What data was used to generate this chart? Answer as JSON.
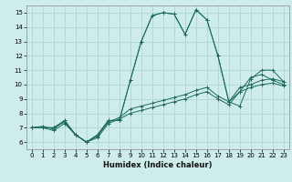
{
  "xlabel": "Humidex (Indice chaleur)",
  "bg_color": "#ceecea",
  "grid_color": "#a8d8d4",
  "line_color": "#1a6b5e",
  "xlim": [
    -0.5,
    23.5
  ],
  "ylim": [
    5.5,
    15.5
  ],
  "xticks": [
    0,
    1,
    2,
    3,
    4,
    5,
    6,
    7,
    8,
    9,
    10,
    11,
    12,
    13,
    14,
    15,
    16,
    17,
    18,
    19,
    20,
    21,
    22,
    23
  ],
  "yticks": [
    6,
    7,
    8,
    9,
    10,
    11,
    12,
    13,
    14,
    15
  ],
  "series": [
    [
      7.0,
      7.1,
      6.9,
      7.5,
      6.5,
      6.0,
      6.5,
      7.5,
      7.5,
      10.3,
      13.0,
      14.8,
      15.0,
      14.9,
      13.5,
      15.2,
      14.5,
      12.0,
      8.8,
      8.5,
      10.4,
      11.0,
      11.0,
      10.2
    ],
    [
      7.0,
      7.0,
      6.8,
      7.3,
      6.5,
      6.0,
      6.5,
      7.5,
      7.5,
      10.3,
      13.0,
      14.8,
      15.0,
      14.9,
      13.5,
      15.2,
      14.5,
      12.0,
      8.8,
      9.5,
      10.5,
      10.7,
      10.3,
      10.0
    ],
    [
      7.0,
      7.0,
      7.0,
      7.5,
      6.5,
      6.0,
      6.4,
      7.4,
      7.7,
      8.3,
      8.5,
      8.7,
      8.9,
      9.1,
      9.3,
      9.6,
      9.8,
      9.2,
      8.8,
      9.8,
      10.0,
      10.3,
      10.4,
      10.2
    ],
    [
      7.0,
      7.0,
      7.0,
      7.4,
      6.5,
      6.0,
      6.3,
      7.3,
      7.6,
      8.0,
      8.2,
      8.4,
      8.6,
      8.8,
      9.0,
      9.3,
      9.5,
      9.0,
      8.6,
      9.5,
      9.8,
      10.0,
      10.1,
      9.9
    ]
  ]
}
